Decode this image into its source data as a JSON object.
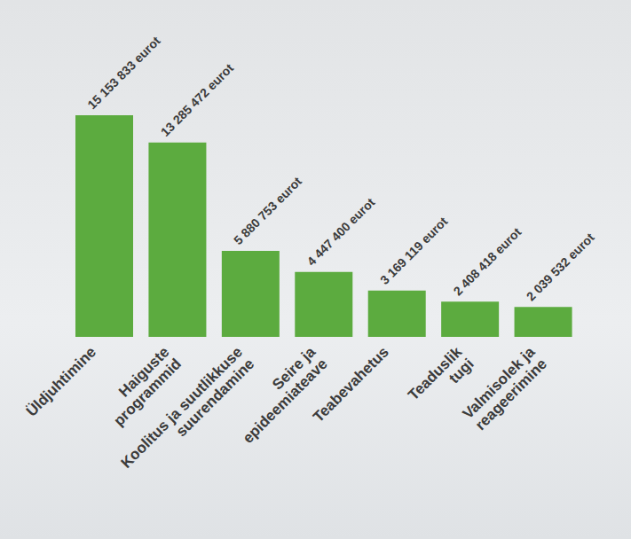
{
  "chart_data": {
    "type": "bar",
    "categories": [
      "Üldjuhtimine",
      "Haiguste programmid",
      "Koolitus ja suutlikkuse suurendamine",
      "Seire ja epideemiateave",
      "Teabevahetus",
      "Teaduslik tugi",
      "Valmisolek ja reageerimine"
    ],
    "values": [
      15153833,
      13285472,
      5880753,
      4447400,
      3169119,
      2408418,
      2039532
    ],
    "value_labels": [
      "15 153 833 eurot",
      "13 285 472 eurot",
      "5 880 753 eurot",
      "4 447 400 eurot",
      "3 169 119 eurot",
      "2 408 418 eurot",
      "2 039 532 eurot"
    ],
    "color": "#5cab3f",
    "data_labels": true,
    "tick_labels": "x",
    "grid": false
  }
}
